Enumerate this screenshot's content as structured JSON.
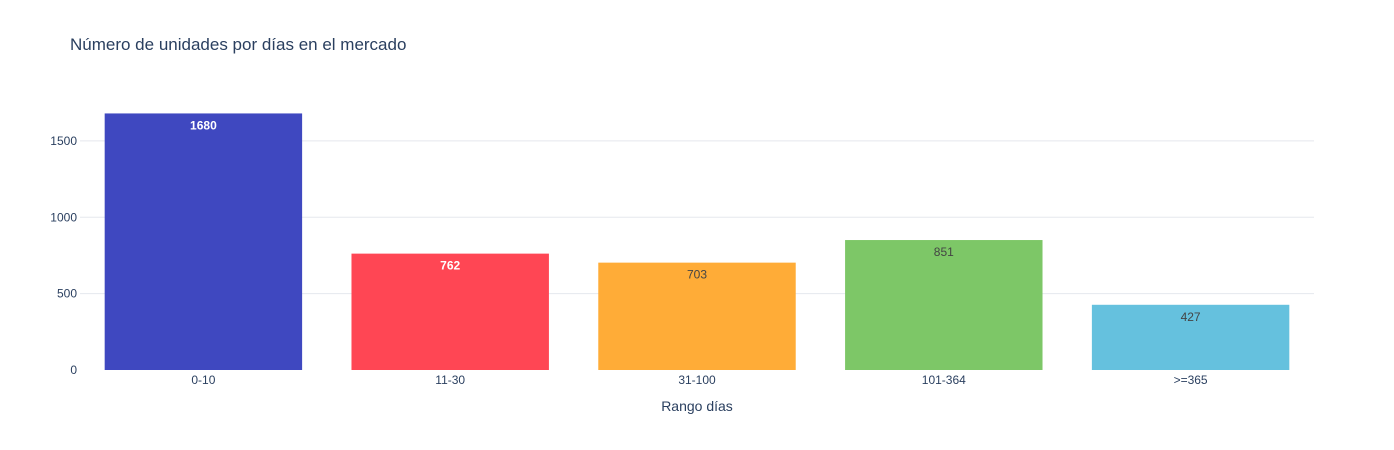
{
  "chart_data": {
    "type": "bar",
    "title": "Número de unidades por días en el mercado",
    "xlabel": "Rango días",
    "ylabel": "",
    "categories": [
      "0-10",
      "11-30",
      "31-100",
      "101-364",
      ">=365"
    ],
    "values": [
      1680,
      762,
      703,
      851,
      427
    ],
    "data_labels": [
      "1680",
      "762",
      "703",
      "851",
      "427"
    ],
    "colors": [
      "#3f48c0",
      "#ff4654",
      "#ffac37",
      "#7dc767",
      "#65c1de"
    ],
    "label_colors": [
      "#ffffff",
      "#ffffff",
      "#444444",
      "#444444",
      "#444444"
    ],
    "ylim": [
      0,
      1768
    ],
    "yticks": [
      0,
      500,
      1000,
      1500
    ],
    "ytick_labels": [
      "0",
      "500",
      "1000",
      "1500"
    ],
    "grid": true,
    "legend": "none"
  }
}
